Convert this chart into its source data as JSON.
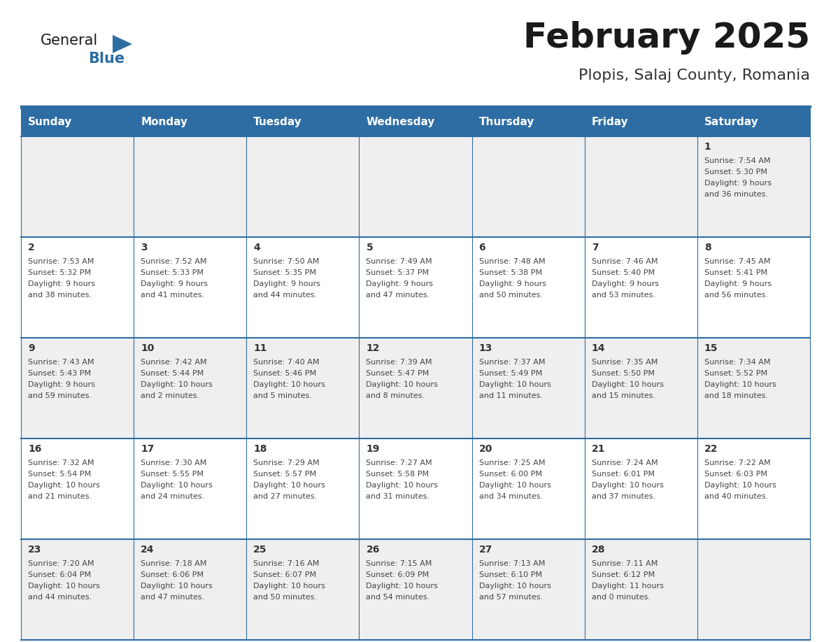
{
  "title": "February 2025",
  "subtitle": "Plopis, Salaj County, Romania",
  "header_bg": "#2E6DA4",
  "header_text": "#FFFFFF",
  "cell_bg_odd": "#EFEFEF",
  "cell_bg_even": "#FFFFFF",
  "border_color": "#2E6DA4",
  "day_headers": [
    "Sunday",
    "Monday",
    "Tuesday",
    "Wednesday",
    "Thursday",
    "Friday",
    "Saturday"
  ],
  "days": [
    {
      "day": 1,
      "col": 6,
      "row": 0,
      "sunrise": "7:54 AM",
      "sunset": "5:30 PM",
      "daylight": "9 hours and 36 minutes."
    },
    {
      "day": 2,
      "col": 0,
      "row": 1,
      "sunrise": "7:53 AM",
      "sunset": "5:32 PM",
      "daylight": "9 hours and 38 minutes."
    },
    {
      "day": 3,
      "col": 1,
      "row": 1,
      "sunrise": "7:52 AM",
      "sunset": "5:33 PM",
      "daylight": "9 hours and 41 minutes."
    },
    {
      "day": 4,
      "col": 2,
      "row": 1,
      "sunrise": "7:50 AM",
      "sunset": "5:35 PM",
      "daylight": "9 hours and 44 minutes."
    },
    {
      "day": 5,
      "col": 3,
      "row": 1,
      "sunrise": "7:49 AM",
      "sunset": "5:37 PM",
      "daylight": "9 hours and 47 minutes."
    },
    {
      "day": 6,
      "col": 4,
      "row": 1,
      "sunrise": "7:48 AM",
      "sunset": "5:38 PM",
      "daylight": "9 hours and 50 minutes."
    },
    {
      "day": 7,
      "col": 5,
      "row": 1,
      "sunrise": "7:46 AM",
      "sunset": "5:40 PM",
      "daylight": "9 hours and 53 minutes."
    },
    {
      "day": 8,
      "col": 6,
      "row": 1,
      "sunrise": "7:45 AM",
      "sunset": "5:41 PM",
      "daylight": "9 hours and 56 minutes."
    },
    {
      "day": 9,
      "col": 0,
      "row": 2,
      "sunrise": "7:43 AM",
      "sunset": "5:43 PM",
      "daylight": "9 hours and 59 minutes."
    },
    {
      "day": 10,
      "col": 1,
      "row": 2,
      "sunrise": "7:42 AM",
      "sunset": "5:44 PM",
      "daylight": "10 hours and 2 minutes."
    },
    {
      "day": 11,
      "col": 2,
      "row": 2,
      "sunrise": "7:40 AM",
      "sunset": "5:46 PM",
      "daylight": "10 hours and 5 minutes."
    },
    {
      "day": 12,
      "col": 3,
      "row": 2,
      "sunrise": "7:39 AM",
      "sunset": "5:47 PM",
      "daylight": "10 hours and 8 minutes."
    },
    {
      "day": 13,
      "col": 4,
      "row": 2,
      "sunrise": "7:37 AM",
      "sunset": "5:49 PM",
      "daylight": "10 hours and 11 minutes."
    },
    {
      "day": 14,
      "col": 5,
      "row": 2,
      "sunrise": "7:35 AM",
      "sunset": "5:50 PM",
      "daylight": "10 hours and 15 minutes."
    },
    {
      "day": 15,
      "col": 6,
      "row": 2,
      "sunrise": "7:34 AM",
      "sunset": "5:52 PM",
      "daylight": "10 hours and 18 minutes."
    },
    {
      "day": 16,
      "col": 0,
      "row": 3,
      "sunrise": "7:32 AM",
      "sunset": "5:54 PM",
      "daylight": "10 hours and 21 minutes."
    },
    {
      "day": 17,
      "col": 1,
      "row": 3,
      "sunrise": "7:30 AM",
      "sunset": "5:55 PM",
      "daylight": "10 hours and 24 minutes."
    },
    {
      "day": 18,
      "col": 2,
      "row": 3,
      "sunrise": "7:29 AM",
      "sunset": "5:57 PM",
      "daylight": "10 hours and 27 minutes."
    },
    {
      "day": 19,
      "col": 3,
      "row": 3,
      "sunrise": "7:27 AM",
      "sunset": "5:58 PM",
      "daylight": "10 hours and 31 minutes."
    },
    {
      "day": 20,
      "col": 4,
      "row": 3,
      "sunrise": "7:25 AM",
      "sunset": "6:00 PM",
      "daylight": "10 hours and 34 minutes."
    },
    {
      "day": 21,
      "col": 5,
      "row": 3,
      "sunrise": "7:24 AM",
      "sunset": "6:01 PM",
      "daylight": "10 hours and 37 minutes."
    },
    {
      "day": 22,
      "col": 6,
      "row": 3,
      "sunrise": "7:22 AM",
      "sunset": "6:03 PM",
      "daylight": "10 hours and 40 minutes."
    },
    {
      "day": 23,
      "col": 0,
      "row": 4,
      "sunrise": "7:20 AM",
      "sunset": "6:04 PM",
      "daylight": "10 hours and 44 minutes."
    },
    {
      "day": 24,
      "col": 1,
      "row": 4,
      "sunrise": "7:18 AM",
      "sunset": "6:06 PM",
      "daylight": "10 hours and 47 minutes."
    },
    {
      "day": 25,
      "col": 2,
      "row": 4,
      "sunrise": "7:16 AM",
      "sunset": "6:07 PM",
      "daylight": "10 hours and 50 minutes."
    },
    {
      "day": 26,
      "col": 3,
      "row": 4,
      "sunrise": "7:15 AM",
      "sunset": "6:09 PM",
      "daylight": "10 hours and 54 minutes."
    },
    {
      "day": 27,
      "col": 4,
      "row": 4,
      "sunrise": "7:13 AM",
      "sunset": "6:10 PM",
      "daylight": "10 hours and 57 minutes."
    },
    {
      "day": 28,
      "col": 5,
      "row": 4,
      "sunrise": "7:11 AM",
      "sunset": "6:12 PM",
      "daylight": "11 hours and 0 minutes."
    }
  ],
  "num_rows": 5,
  "num_cols": 7,
  "logo_text1": "General",
  "logo_text2": "Blue",
  "logo_text_color1": "#1a1a1a",
  "logo_text_color2": "#2E6DA4",
  "logo_triangle_color": "#2E6DA4",
  "title_fontsize": 36,
  "subtitle_fontsize": 16,
  "day_header_fontsize": 11,
  "day_num_fontsize": 10,
  "cell_text_fontsize": 8
}
